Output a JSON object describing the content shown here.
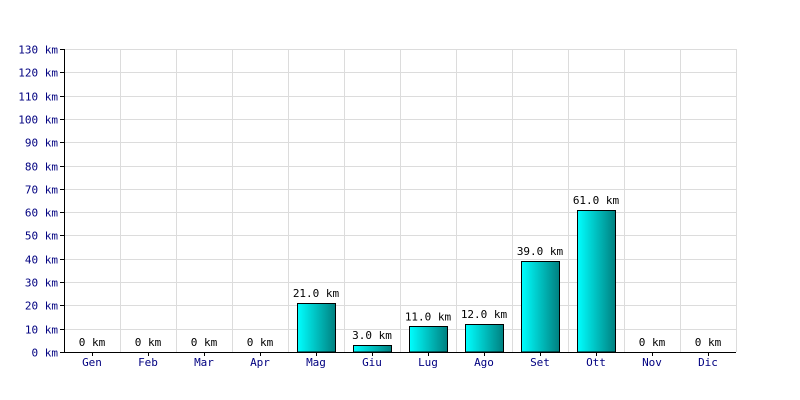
{
  "chart_data": {
    "type": "bar",
    "categories": [
      "Gen",
      "Feb",
      "Mar",
      "Apr",
      "Mag",
      "Giu",
      "Lug",
      "Ago",
      "Set",
      "Ott",
      "Nov",
      "Dic"
    ],
    "values": [
      0,
      0,
      0,
      0,
      21,
      3,
      11,
      12,
      39,
      61,
      0,
      0
    ],
    "data_labels": [
      "0 km",
      "0 km",
      "0 km",
      "0 km",
      "21.0 km",
      "3.0 km",
      "11.0 km",
      "12.0 km",
      "39.0 km",
      "61.0 km",
      "0 km",
      "0 km"
    ],
    "y_ticks": [
      0,
      10,
      20,
      30,
      40,
      50,
      60,
      70,
      80,
      90,
      100,
      110,
      120,
      130
    ],
    "y_tick_labels": [
      "0 km",
      "10 km",
      "20 km",
      "30 km",
      "40 km",
      "50 km",
      "60 km",
      "70 km",
      "80 km",
      "90 km",
      "100 km",
      "110 km",
      "120 km",
      "130 km"
    ],
    "ylim": [
      0,
      130
    ],
    "grid": true,
    "colors": {
      "bar_top": "#00ffff",
      "bar_bottom": "#007777",
      "tick_text": "#000080",
      "grid": "#dcdcdc"
    }
  }
}
